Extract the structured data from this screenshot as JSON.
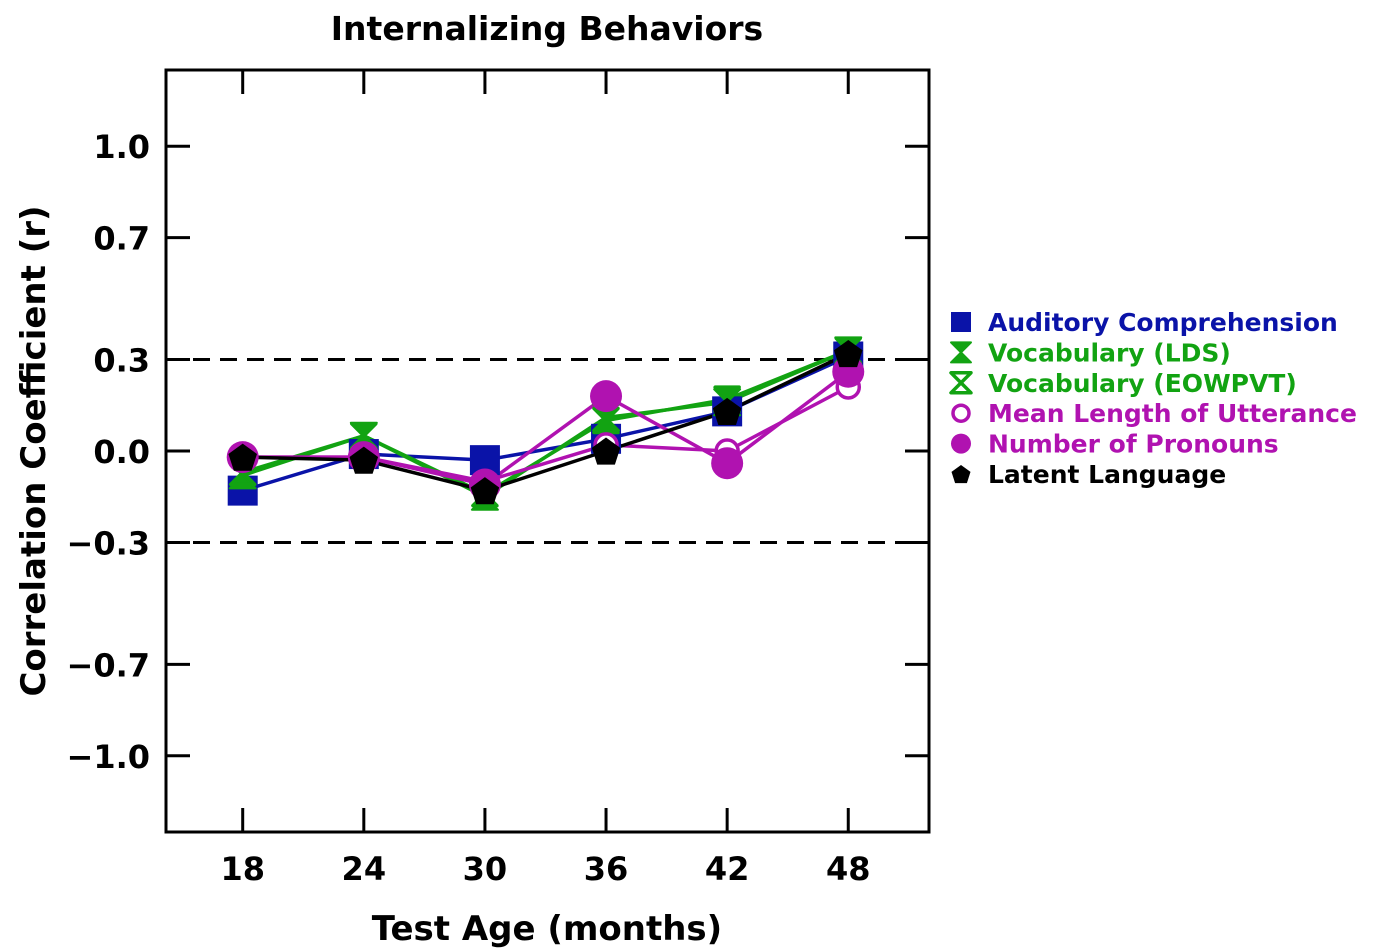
{
  "chart_data": {
    "type": "line",
    "title": "Internalizing Behaviors",
    "xlabel": "Test Age (months)",
    "ylabel": "Correlation Coefficient (r)",
    "x": [
      18,
      24,
      30,
      36,
      42,
      48
    ],
    "x_tick_labels": [
      "18",
      "24",
      "30",
      "36",
      "42",
      "48"
    ],
    "xlim": [
      14.2,
      52
    ],
    "ylim": [
      -1.25,
      1.25
    ],
    "y_ticks": [
      1.0,
      0.7,
      0.3,
      0.0,
      -0.3,
      -0.7,
      -1.0
    ],
    "y_tick_labels": [
      "1.0",
      "0.7",
      "0.3",
      "0.0",
      "−0.3",
      "−0.7",
      "−1.0"
    ],
    "reference_lines": [
      0.3,
      -0.3
    ],
    "grid": false,
    "legend_position": "right",
    "series": [
      {
        "name": "Auditory Comprehension",
        "color": "#0a13a8",
        "marker": "square-filled",
        "values": [
          -0.13,
          -0.01,
          -0.03,
          0.04,
          0.13,
          0.31
        ]
      },
      {
        "name": "Vocabulary (LDS)",
        "color": "#12a312",
        "marker": "hourglass-filled",
        "values": [
          -0.08,
          0.05,
          -0.15,
          0.11,
          0.16,
          0.33
        ]
      },
      {
        "name": "Vocabulary (EOWPVT)",
        "color": "#12a312",
        "marker": "hourglass-open",
        "values": [
          -0.07,
          0.05,
          -0.14,
          0.1,
          0.17,
          0.33
        ]
      },
      {
        "name": "Mean Length of Utterance",
        "color": "#b012b0",
        "marker": "circle-open",
        "values": [
          -0.02,
          -0.02,
          -0.1,
          0.02,
          0.0,
          0.21
        ]
      },
      {
        "name": "Number of Pronouns",
        "color": "#b012b0",
        "marker": "circle-filled",
        "values": [
          -0.02,
          -0.02,
          -0.11,
          0.18,
          -0.04,
          0.26
        ]
      },
      {
        "name": "Latent Language",
        "color": "#000000",
        "marker": "pentagon-filled",
        "values": [
          -0.02,
          -0.03,
          -0.13,
          0.0,
          0.13,
          0.32
        ]
      }
    ]
  }
}
